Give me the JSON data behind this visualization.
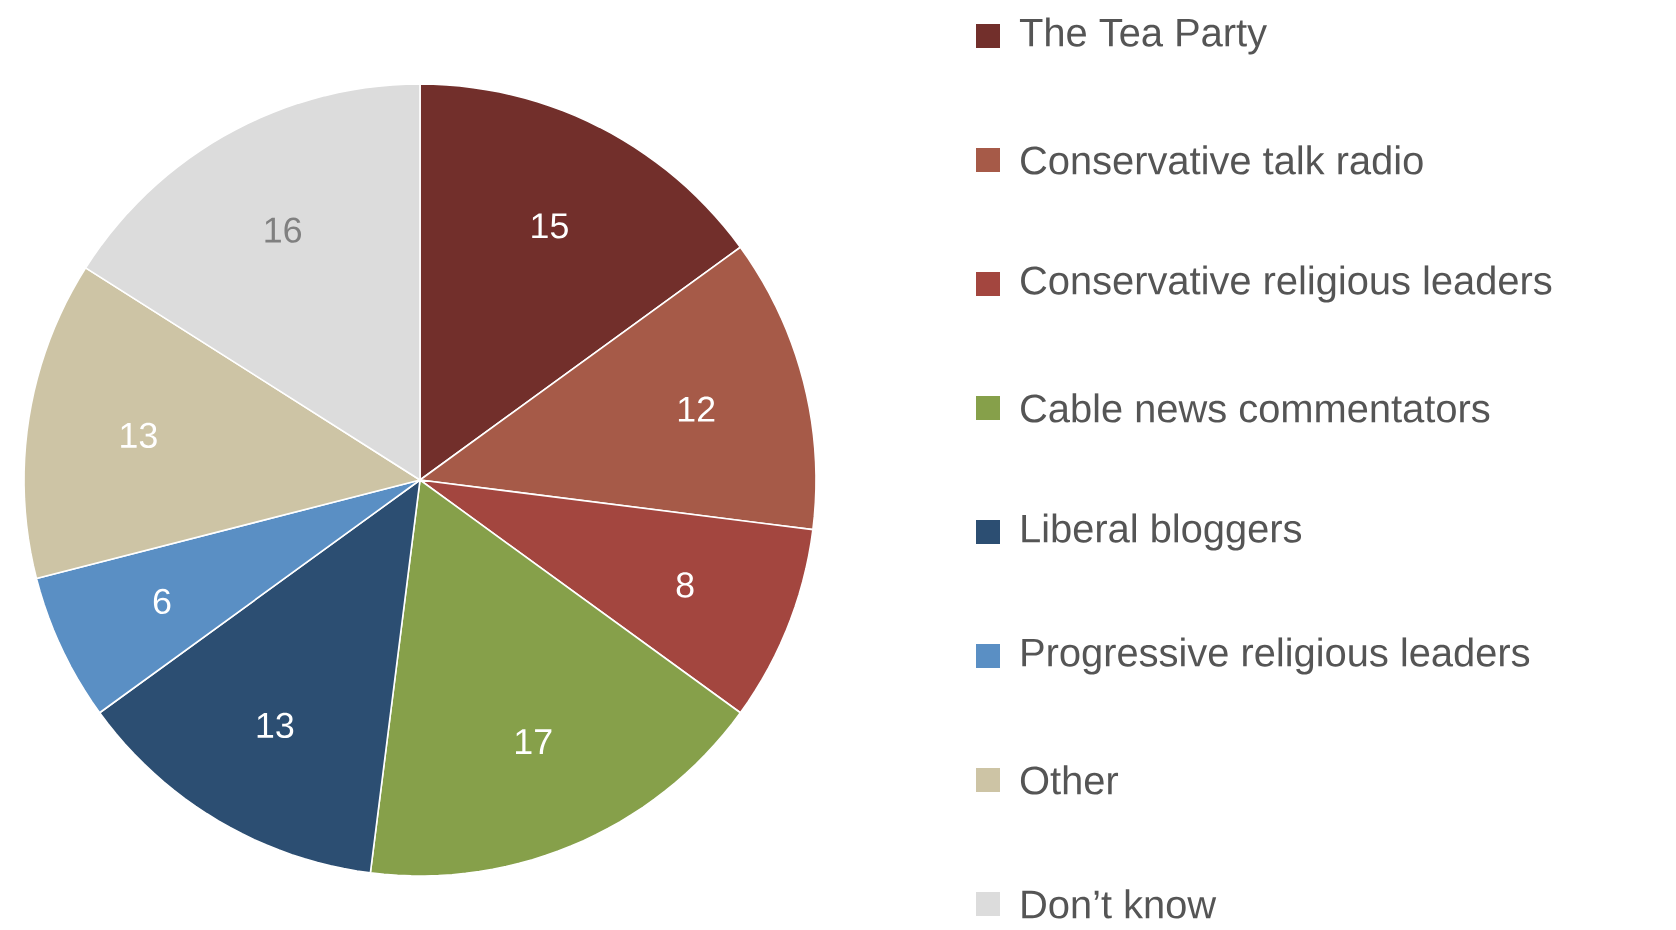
{
  "chart_data": {
    "type": "pie",
    "categories": [
      "The Tea Party",
      "Conservative talk radio",
      "Conservative religious leaders",
      "Cable news commentators",
      "Liberal bloggers",
      "Progressive religious leaders",
      "Other",
      "Don’t know"
    ],
    "values": [
      15,
      12,
      8,
      17,
      13,
      6,
      13,
      16
    ],
    "colors": [
      "#722f2b",
      "#a65a48",
      "#a3463f",
      "#86a04a",
      "#2c4e72",
      "#5a8fc4",
      "#cdc4a5",
      "#dcdcdc"
    ],
    "data_labels": true,
    "legend": "right"
  }
}
